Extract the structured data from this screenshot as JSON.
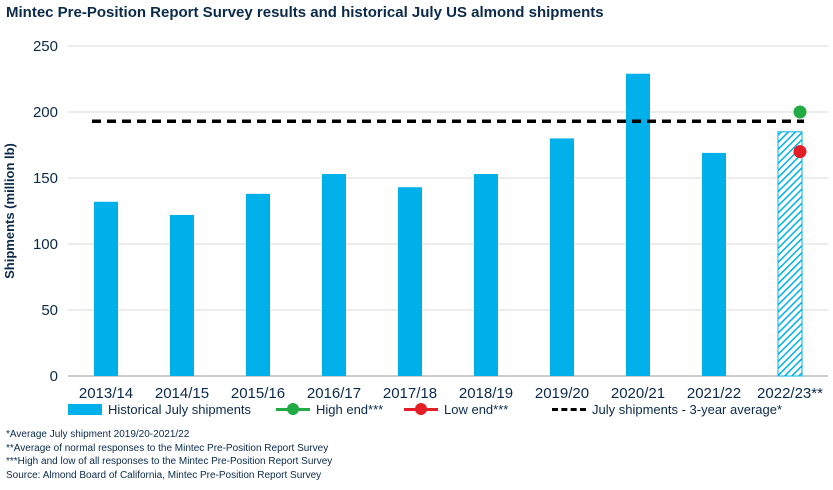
{
  "title": "Mintec Pre-Position Report Survey results and historical July US almond shipments",
  "colors": {
    "bar": "#00b0ea",
    "high": "#22aa44",
    "low": "#e41e26",
    "average": "#000000",
    "text": "#0b2a4a"
  },
  "legend": {
    "historical": "Historical July shipments",
    "high": "High end***",
    "low": "Low end***",
    "average": "July shipments - 3-year average*"
  },
  "notes": [
    "*Average July shipment 2019/20-2021/22",
    "**Average of normal responses to the Mintec Pre-Position Report Survey",
    "***High and low of all responses to the Mintec Pre-Position Report Survey",
    "Source: Almond Board of California, Mintec Pre-Position Report Survey"
  ],
  "chart_data": {
    "type": "bar",
    "title": "Mintec Pre-Position Report Survey results and historical July US almond shipments",
    "xlabel": "",
    "ylabel": "Shipments (million lb)",
    "ylim": [
      0,
      250
    ],
    "yticks": [
      0,
      50,
      100,
      150,
      200,
      250
    ],
    "grid": true,
    "legend_position": "bottom",
    "categories": [
      "2013/14",
      "2014/15",
      "2015/16",
      "2016/17",
      "2017/18",
      "2018/19",
      "2019/20",
      "2020/21",
      "2021/22",
      "2022/23**"
    ],
    "series": [
      {
        "name": "Historical July shipments",
        "type": "bar",
        "values": [
          132,
          122,
          138,
          153,
          143,
          153,
          180,
          229,
          169,
          185
        ],
        "hatched_last": true
      },
      {
        "name": "High end***",
        "type": "point",
        "category": "2022/23**",
        "value": 200
      },
      {
        "name": "Low end***",
        "type": "point",
        "category": "2022/23**",
        "value": 170
      },
      {
        "name": "July shipments - 3-year average*",
        "type": "dashed-line",
        "value": 193
      }
    ]
  }
}
